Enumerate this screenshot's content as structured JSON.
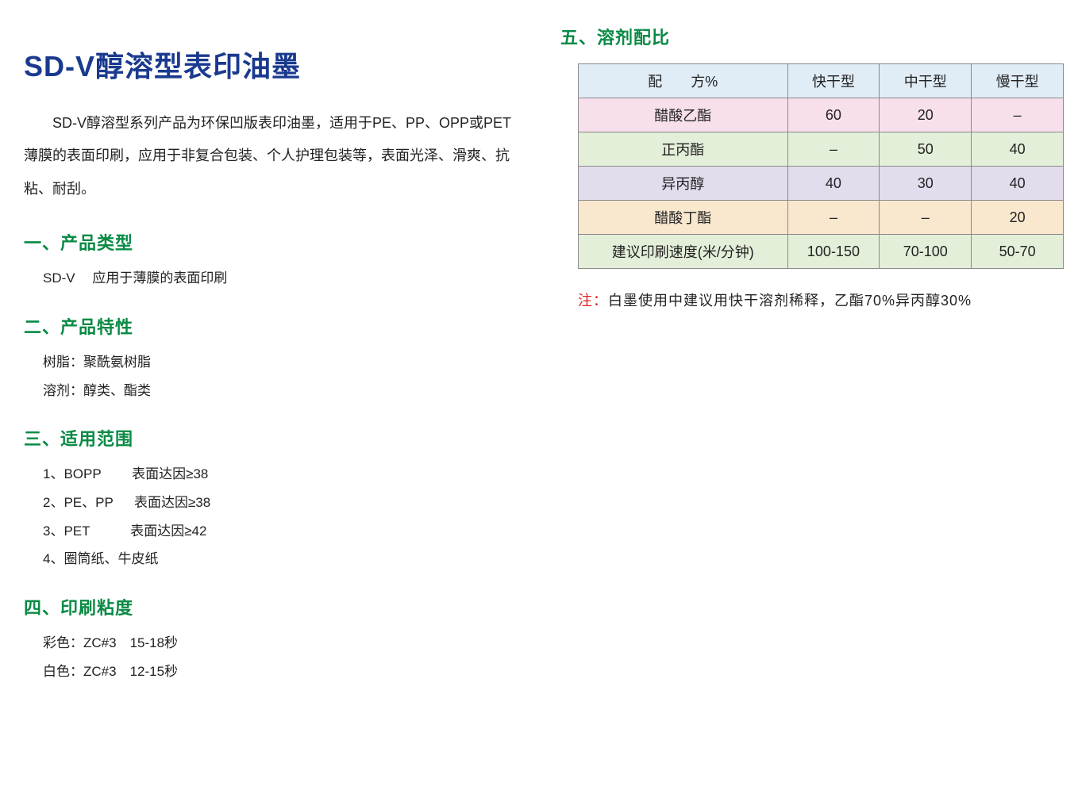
{
  "title": "SD-V醇溶型表印油墨",
  "intro": "SD-V醇溶型系列产品为环保凹版表印油墨，适用于PE、PP、OPP或PET薄膜的表面印刷，应用于非复合包装、个人护理包装等，表面光泽、滑爽、抗粘、耐刮。",
  "s1": {
    "head": "一、产品类型",
    "l1": "SD-V　 应用于薄膜的表面印刷"
  },
  "s2": {
    "head": "二、产品特性",
    "l1": "树脂：聚酰氨树脂",
    "l2": "溶剂：醇类、酯类"
  },
  "s3": {
    "head": "三、适用范围",
    "l1": "1、BOPP　　 表面达因≥38",
    "l2": "2、PE、PP 　 表面达因≥38",
    "l3": "3、PET　　　表面达因≥42",
    "l4": "4、圈筒纸、牛皮纸"
  },
  "s4": {
    "head": "四、印刷粘度",
    "l1": "彩色：ZC#3　15-18秒",
    "l2": "白色：ZC#3　12-15秒"
  },
  "s5": {
    "head": "五、溶剂配比"
  },
  "table": {
    "col_widths": [
      "264px",
      "116px",
      "116px",
      "116px"
    ],
    "header_bg": "#e0ecf6",
    "row_colors": [
      "#f7e0eb",
      "#e4efd9",
      "#e2dced",
      "#f9e7ce",
      "#e4efd9"
    ],
    "columns": [
      "配　　方%",
      "快干型",
      "中干型",
      "慢干型"
    ],
    "rows": [
      [
        "醋酸乙酯",
        "60",
        "20",
        "–"
      ],
      [
        "正丙酯",
        "–",
        "50",
        "40"
      ],
      [
        "异丙醇",
        "40",
        "30",
        "40"
      ],
      [
        "醋酸丁酯",
        "–",
        "–",
        "20"
      ],
      [
        "建议印刷速度(米/分钟)",
        "100-150",
        "70-100",
        "50-70"
      ]
    ]
  },
  "note": {
    "label": "注：",
    "text": "白墨使用中建议用快干溶剂稀释，乙酯70%异丙醇30%"
  }
}
